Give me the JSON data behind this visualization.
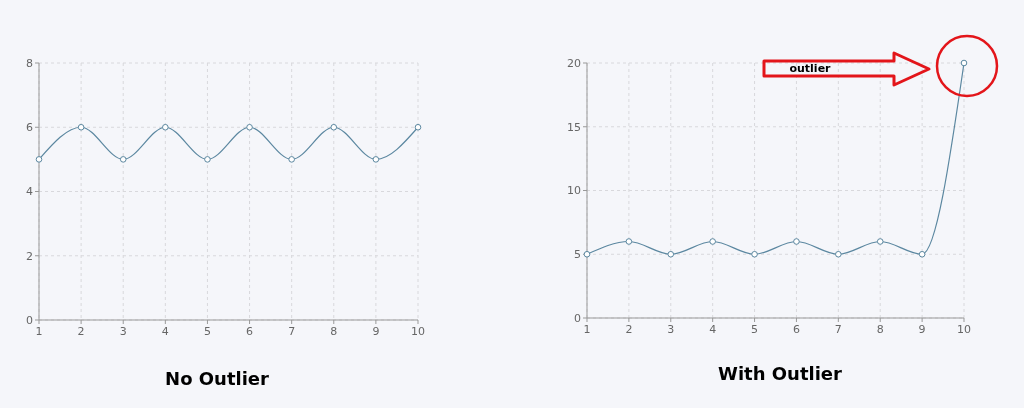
{
  "chart_data": [
    {
      "type": "line",
      "title": "No Outlier",
      "x": [
        1,
        2,
        3,
        4,
        5,
        6,
        7,
        8,
        9,
        10
      ],
      "series": [
        {
          "color": "#5b87a0",
          "values": [
            5,
            6,
            5,
            6,
            5,
            6,
            5,
            6,
            5,
            6
          ]
        }
      ],
      "xlim": [
        1,
        10
      ],
      "xticks": [
        1,
        2,
        3,
        4,
        5,
        6,
        7,
        8,
        9,
        10
      ],
      "ylim": [
        0,
        8
      ],
      "yticks": [
        0,
        2,
        4,
        6,
        8
      ],
      "grid": true,
      "marker": "circle"
    },
    {
      "type": "line",
      "title": "With Outlier",
      "x": [
        1,
        2,
        3,
        4,
        5,
        6,
        7,
        8,
        9,
        10
      ],
      "series": [
        {
          "color": "#5b87a0",
          "values": [
            5,
            6,
            5,
            6,
            5,
            6,
            5,
            6,
            5,
            20
          ]
        }
      ],
      "xlim": [
        1,
        10
      ],
      "xticks": [
        1,
        2,
        3,
        4,
        5,
        6,
        7,
        8,
        9,
        10
      ],
      "ylim": [
        0,
        20
      ],
      "yticks": [
        0,
        5,
        10,
        15,
        20
      ],
      "grid": true,
      "marker": "circle",
      "annotations": [
        "outlier"
      ]
    }
  ]
}
